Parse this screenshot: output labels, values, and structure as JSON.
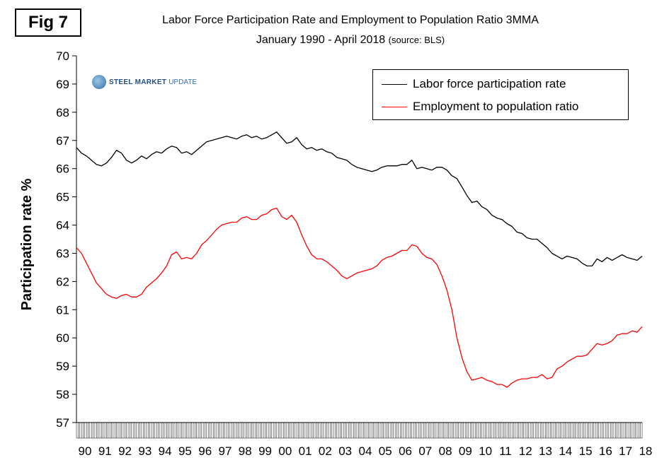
{
  "figure_label": "Fig 7",
  "title": "Labor Force Participation Rate and Employment to Population Ratio 3MMA",
  "subtitle_main": "January 1990 - April 2018",
  "subtitle_source": "(source: BLS)",
  "logo": {
    "steel": "STEEL MARKET",
    "update": "UPDATE"
  },
  "chart_data": {
    "type": "line",
    "title": "Labor Force Participation Rate and Employment to Population Ratio 3MMA",
    "subtitle": "January 1990 - April 2018 (source: BLS)",
    "xlabel": "",
    "ylabel": "Participation rate %",
    "ylim": [
      57,
      70
    ],
    "yticks": [
      57,
      58,
      59,
      60,
      61,
      62,
      63,
      64,
      65,
      66,
      67,
      68,
      69,
      70
    ],
    "xlim": [
      1990.0,
      2018.25
    ],
    "xtick_labels": [
      "90",
      "91",
      "92",
      "93",
      "94",
      "95",
      "96",
      "97",
      "98",
      "99",
      "00",
      "01",
      "02",
      "03",
      "04",
      "05",
      "06",
      "07",
      "08",
      "09",
      "10",
      "11",
      "12",
      "13",
      "14",
      "15",
      "16",
      "17",
      "18"
    ],
    "grid": false,
    "legend_position": "top-right",
    "series": [
      {
        "name": "Labor force participation rate",
        "color": "#000000",
        "x": [
          1990.0,
          1990.25,
          1990.5,
          1990.75,
          1991.0,
          1991.25,
          1991.5,
          1991.75,
          1992.0,
          1992.25,
          1992.5,
          1992.75,
          1993.0,
          1993.25,
          1993.5,
          1993.75,
          1994.0,
          1994.25,
          1994.5,
          1994.75,
          1995.0,
          1995.25,
          1995.5,
          1995.75,
          1996.0,
          1996.25,
          1996.5,
          1996.75,
          1997.0,
          1997.25,
          1997.5,
          1997.75,
          1998.0,
          1998.25,
          1998.5,
          1998.75,
          1999.0,
          1999.25,
          1999.5,
          1999.75,
          2000.0,
          2000.25,
          2000.5,
          2000.75,
          2001.0,
          2001.25,
          2001.5,
          2001.75,
          2002.0,
          2002.25,
          2002.5,
          2002.75,
          2003.0,
          2003.25,
          2003.5,
          2003.75,
          2004.0,
          2004.25,
          2004.5,
          2004.75,
          2005.0,
          2005.25,
          2005.5,
          2005.75,
          2006.0,
          2006.25,
          2006.5,
          2006.75,
          2007.0,
          2007.25,
          2007.5,
          2007.75,
          2008.0,
          2008.25,
          2008.5,
          2008.75,
          2009.0,
          2009.25,
          2009.5,
          2009.75,
          2010.0,
          2010.25,
          2010.5,
          2010.75,
          2011.0,
          2011.25,
          2011.5,
          2011.75,
          2012.0,
          2012.25,
          2012.5,
          2012.75,
          2013.0,
          2013.25,
          2013.5,
          2013.75,
          2014.0,
          2014.25,
          2014.5,
          2014.75,
          2015.0,
          2015.25,
          2015.5,
          2015.75,
          2016.0,
          2016.25,
          2016.5,
          2016.75,
          2017.0,
          2017.25,
          2017.5,
          2017.75,
          2018.0,
          2018.25
        ],
        "values": [
          66.75,
          66.55,
          66.45,
          66.3,
          66.15,
          66.1,
          66.2,
          66.4,
          66.65,
          66.55,
          66.3,
          66.2,
          66.3,
          66.45,
          66.35,
          66.5,
          66.6,
          66.55,
          66.7,
          66.8,
          66.75,
          66.55,
          66.6,
          66.5,
          66.65,
          66.8,
          66.95,
          67.0,
          67.05,
          67.1,
          67.15,
          67.1,
          67.05,
          67.15,
          67.2,
          67.1,
          67.15,
          67.05,
          67.1,
          67.2,
          67.3,
          67.1,
          66.9,
          66.95,
          67.1,
          66.85,
          66.7,
          66.75,
          66.65,
          66.7,
          66.6,
          66.55,
          66.4,
          66.35,
          66.3,
          66.15,
          66.05,
          66.0,
          65.95,
          65.9,
          65.95,
          66.05,
          66.1,
          66.1,
          66.1,
          66.15,
          66.15,
          66.3,
          66.0,
          66.05,
          66.0,
          65.95,
          66.05,
          66.05,
          65.95,
          65.75,
          65.65,
          65.35,
          65.05,
          64.8,
          64.85,
          64.65,
          64.55,
          64.35,
          64.25,
          64.2,
          64.05,
          63.95,
          63.75,
          63.7,
          63.55,
          63.5,
          63.5,
          63.35,
          63.2,
          63.0,
          62.9,
          62.8,
          62.9,
          62.85,
          62.8,
          62.65,
          62.55,
          62.55,
          62.8,
          62.7,
          62.85,
          62.75,
          62.85,
          62.95,
          62.85,
          62.8,
          62.75,
          62.9
        ]
      },
      {
        "name": "Employment to population ratio",
        "color": "#ff0000",
        "x": [
          1990.0,
          1990.25,
          1990.5,
          1990.75,
          1991.0,
          1991.25,
          1991.5,
          1991.75,
          1992.0,
          1992.25,
          1992.5,
          1992.75,
          1993.0,
          1993.25,
          1993.5,
          1993.75,
          1994.0,
          1994.25,
          1994.5,
          1994.75,
          1995.0,
          1995.25,
          1995.5,
          1995.75,
          1996.0,
          1996.25,
          1996.5,
          1996.75,
          1997.0,
          1997.25,
          1997.5,
          1997.75,
          1998.0,
          1998.25,
          1998.5,
          1998.75,
          1999.0,
          1999.25,
          1999.5,
          1999.75,
          2000.0,
          2000.25,
          2000.5,
          2000.75,
          2001.0,
          2001.25,
          2001.5,
          2001.75,
          2002.0,
          2002.25,
          2002.5,
          2002.75,
          2003.0,
          2003.25,
          2003.5,
          2003.75,
          2004.0,
          2004.25,
          2004.5,
          2004.75,
          2005.0,
          2005.25,
          2005.5,
          2005.75,
          2006.0,
          2006.25,
          2006.5,
          2006.75,
          2007.0,
          2007.25,
          2007.5,
          2007.75,
          2008.0,
          2008.25,
          2008.5,
          2008.75,
          2009.0,
          2009.25,
          2009.5,
          2009.75,
          2010.0,
          2010.25,
          2010.5,
          2010.75,
          2011.0,
          2011.25,
          2011.5,
          2011.75,
          2012.0,
          2012.25,
          2012.5,
          2012.75,
          2013.0,
          2013.25,
          2013.5,
          2013.75,
          2014.0,
          2014.25,
          2014.5,
          2014.75,
          2015.0,
          2015.25,
          2015.5,
          2015.75,
          2016.0,
          2016.25,
          2016.5,
          2016.75,
          2017.0,
          2017.25,
          2017.5,
          2017.75,
          2018.0,
          2018.25
        ],
        "values": [
          63.2,
          63.0,
          62.65,
          62.3,
          61.95,
          61.75,
          61.55,
          61.45,
          61.4,
          61.5,
          61.55,
          61.45,
          61.45,
          61.55,
          61.8,
          61.95,
          62.1,
          62.3,
          62.55,
          62.95,
          63.05,
          62.8,
          62.85,
          62.8,
          63.0,
          63.3,
          63.45,
          63.65,
          63.85,
          64.0,
          64.05,
          64.1,
          64.1,
          64.25,
          64.3,
          64.2,
          64.2,
          64.35,
          64.4,
          64.55,
          64.6,
          64.3,
          64.2,
          64.35,
          64.1,
          63.65,
          63.25,
          62.95,
          62.8,
          62.8,
          62.7,
          62.55,
          62.4,
          62.2,
          62.1,
          62.2,
          62.3,
          62.35,
          62.4,
          62.45,
          62.55,
          62.75,
          62.85,
          62.9,
          63.0,
          63.1,
          63.1,
          63.3,
          63.25,
          63.0,
          62.85,
          62.8,
          62.6,
          62.2,
          61.7,
          61.0,
          60.0,
          59.3,
          58.8,
          58.5,
          58.55,
          58.6,
          58.5,
          58.45,
          58.35,
          58.35,
          58.25,
          58.4,
          58.5,
          58.55,
          58.55,
          58.6,
          58.6,
          58.7,
          58.55,
          58.6,
          58.9,
          59.0,
          59.15,
          59.25,
          59.35,
          59.35,
          59.4,
          59.6,
          59.8,
          59.75,
          59.8,
          59.9,
          60.1,
          60.15,
          60.15,
          60.25,
          60.2,
          60.4
        ]
      }
    ]
  }
}
